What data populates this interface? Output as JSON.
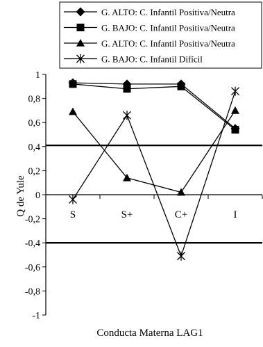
{
  "chart_data": {
    "type": "line",
    "categories": [
      "S",
      "S+",
      "C+",
      "I"
    ],
    "series": [
      {
        "name": "G. ALTO: C. Infantil Positiva/Neutra",
        "marker": "diamond",
        "values": [
          0.93,
          0.92,
          0.92,
          0.55
        ]
      },
      {
        "name": "G. BAJO: C. Infantil Positiva/Neutra",
        "marker": "square",
        "values": [
          0.92,
          0.88,
          0.9,
          0.54
        ]
      },
      {
        "name": "G. ALTO: C. Infantil Positiva/Neutra",
        "marker": "triangle",
        "values": [
          0.69,
          0.14,
          0.02,
          0.7
        ]
      },
      {
        "name": "G. BAJO: C. Infantil Difícil",
        "marker": "asterisk",
        "values": [
          -0.04,
          0.66,
          -0.51,
          0.86
        ]
      }
    ],
    "reference_lines": [
      0.41,
      -0.4
    ],
    "xlabel": "Conducta Materna LAG1",
    "ylabel": "Q de Yule",
    "ylim": [
      -1,
      1
    ],
    "yticks": [
      1,
      0.8,
      0.6,
      0.4,
      0.2,
      0,
      -0.2,
      -0.4,
      -0.6,
      -0.8,
      -1
    ],
    "ytick_labels": [
      "1",
      "0,8",
      "0,6",
      "0,4",
      "0,2",
      "0",
      "-0,2",
      "-0,4",
      "-0,6",
      "-0,8",
      "-1"
    ],
    "legend_position": "top",
    "grid": false,
    "colors": {
      "line": "#000000",
      "background": "#ffffff"
    }
  }
}
